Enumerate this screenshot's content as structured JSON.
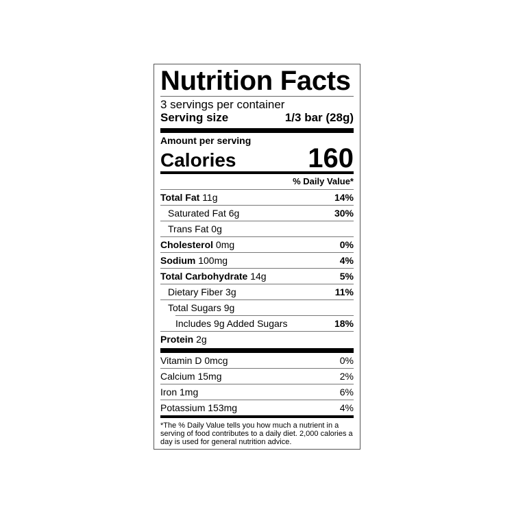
{
  "title": "Nutrition Facts",
  "servings_per_container": "3 servings per container",
  "serving_size": {
    "label": "Serving size",
    "value": "1/3 bar (28g)"
  },
  "amount_per_serving": "Amount per serving",
  "calories": {
    "label": "Calories",
    "value": "160"
  },
  "daily_value_header": "% Daily Value*",
  "nutrients": [
    {
      "name": "Total Fat",
      "amount": "11g",
      "dv": "14%",
      "bold": true,
      "indent": 0
    },
    {
      "name": "Saturated Fat",
      "amount": "6g",
      "dv": "30%",
      "bold": false,
      "indent": 1
    },
    {
      "name": "Trans Fat",
      "amount": "0g",
      "dv": "",
      "bold": false,
      "indent": 1
    },
    {
      "name": "Cholesterol",
      "amount": "0mg",
      "dv": "0%",
      "bold": true,
      "indent": 0
    },
    {
      "name": "Sodium",
      "amount": "100mg",
      "dv": "4%",
      "bold": true,
      "indent": 0
    },
    {
      "name": "Total Carbohydrate",
      "amount": "14g",
      "dv": "5%",
      "bold": true,
      "indent": 0
    },
    {
      "name": "Dietary Fiber",
      "amount": "3g",
      "dv": "11%",
      "bold": false,
      "indent": 1
    },
    {
      "name": "Total Sugars",
      "amount": "9g",
      "dv": "",
      "bold": false,
      "indent": 1
    },
    {
      "name": "Includes 9g Added Sugars",
      "amount": "",
      "dv": "18%",
      "bold": false,
      "indent": 2
    },
    {
      "name": "Protein",
      "amount": "2g",
      "dv": "",
      "bold": true,
      "indent": 0
    }
  ],
  "vitamins": [
    {
      "name": "Vitamin D 0mcg",
      "dv": "0%"
    },
    {
      "name": "Calcium 15mg",
      "dv": "2%"
    },
    {
      "name": "Iron 1mg",
      "dv": "6%"
    },
    {
      "name": "Potassium 153mg",
      "dv": "4%"
    }
  ],
  "footnote": "*The % Daily Value tells you how much a nutrient in a serving of food contributes to a daily diet. 2,000 calories a day is used for general nutrition advice."
}
